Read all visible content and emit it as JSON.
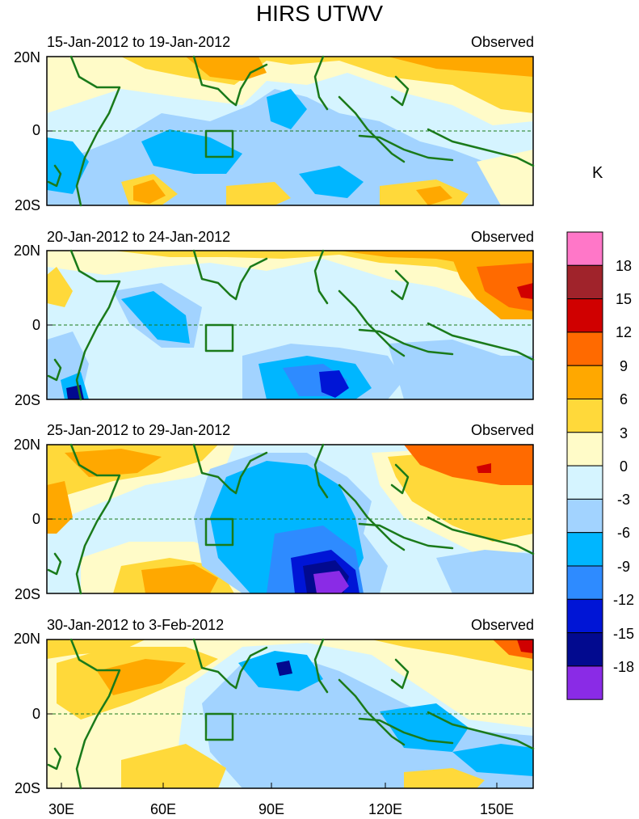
{
  "title": "HIRS UTWV",
  "unit_label": "K",
  "panels": [
    {
      "date": "15-Jan-2012 to 19-Jan-2012",
      "label": "Observed"
    },
    {
      "date": "20-Jan-2012 to 24-Jan-2012",
      "label": "Observed"
    },
    {
      "date": "25-Jan-2012 to 29-Jan-2012",
      "label": "Observed"
    },
    {
      "date": "30-Jan-2012 to 3-Feb-2012",
      "label": "Observed"
    }
  ],
  "lat_labels": [
    "20N",
    "0",
    "20S"
  ],
  "lon_labels": [
    "30E",
    "60E",
    "90E",
    "120E",
    "150E"
  ],
  "colorbar": {
    "colors": [
      "#ff77c8",
      "#a0232b",
      "#d00000",
      "#ff6a00",
      "#ffa800",
      "#ffd93a",
      "#fffbc8",
      "#d5f4ff",
      "#a2d3ff",
      "#00b6ff",
      "#2e8bff",
      "#0015d6",
      "#020a8f",
      "#8a2be6"
    ],
    "labels": [
      "18",
      "15",
      "12",
      "9",
      "6",
      "3",
      "0",
      "-3",
      "-6",
      "-9",
      "-12",
      "-15",
      "-18"
    ]
  }
}
